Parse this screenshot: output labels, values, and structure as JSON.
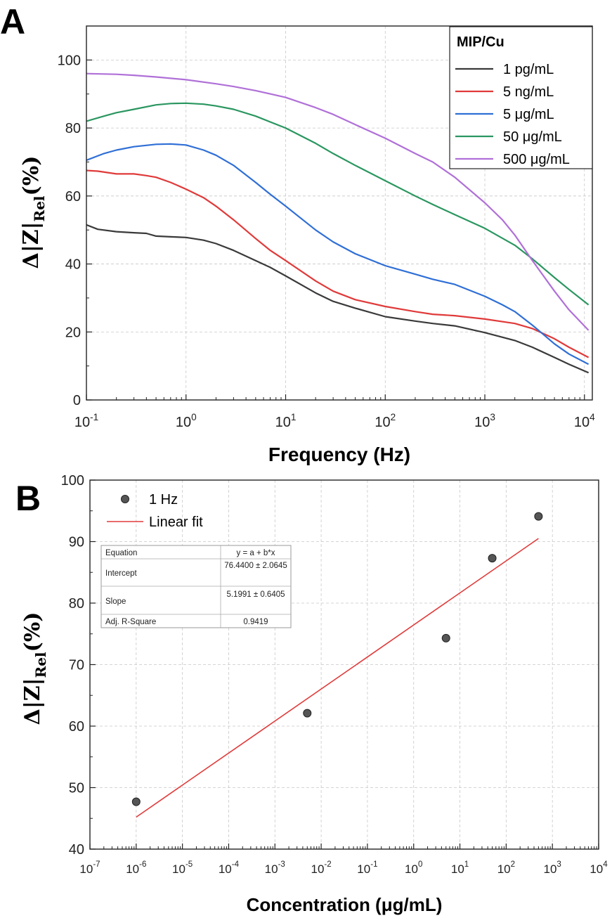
{
  "chart_data": [
    {
      "panel": "A",
      "type": "line",
      "xscale": "log",
      "xlabel": "Frequency (Hz)",
      "ylabel": {
        "prefix": "Δ|Z|",
        "sub": "Rel",
        "suffix": "(%)"
      },
      "xlim": [
        0.1,
        12000
      ],
      "ylim": [
        0,
        110
      ],
      "xticks": [
        {
          "value": 0.1,
          "base": "10",
          "exp": "-1"
        },
        {
          "value": 1,
          "base": "10",
          "exp": "0"
        },
        {
          "value": 10,
          "base": "10",
          "exp": "1"
        },
        {
          "value": 100,
          "base": "10",
          "exp": "2"
        },
        {
          "value": 1000,
          "base": "10",
          "exp": "3"
        },
        {
          "value": 10000,
          "base": "10",
          "exp": "4"
        }
      ],
      "yticks": [
        0,
        20,
        40,
        60,
        80,
        100
      ],
      "grid": true,
      "legend": {
        "title": "MIP/Cu",
        "position": "top-right"
      },
      "series": [
        {
          "name": "1 pg/mL",
          "color": "#3a3a3a",
          "x": [
            0.1,
            0.13,
            0.2,
            0.3,
            0.4,
            0.5,
            0.7,
            1,
            1.5,
            2,
            3,
            5,
            7,
            10,
            20,
            30,
            50,
            100,
            200,
            300,
            500,
            1000,
            2000,
            3000,
            5000,
            7000,
            11000
          ],
          "y": [
            51.5,
            50.2,
            49.5,
            49.2,
            49.0,
            48.2,
            48.0,
            47.8,
            47.0,
            46.0,
            44.0,
            41.0,
            39.0,
            36.5,
            31.5,
            29.0,
            27.0,
            24.5,
            23.2,
            22.5,
            21.8,
            19.8,
            17.5,
            15.5,
            12.5,
            10.5,
            8.0
          ]
        },
        {
          "name": "5 ng/mL",
          "color": "#e03a3a",
          "x": [
            0.1,
            0.13,
            0.2,
            0.3,
            0.4,
            0.5,
            0.7,
            1,
            1.5,
            2,
            3,
            5,
            7,
            10,
            20,
            30,
            50,
            100,
            200,
            300,
            500,
            1000,
            2000,
            3000,
            5000,
            7000,
            11000
          ],
          "y": [
            67.5,
            67.3,
            66.5,
            66.5,
            66.0,
            65.5,
            64.0,
            62.0,
            59.5,
            57.0,
            53.0,
            47.5,
            44.0,
            41.0,
            35.0,
            32.0,
            29.5,
            27.5,
            26.0,
            25.2,
            24.8,
            23.8,
            22.5,
            21.0,
            18.0,
            15.5,
            12.5
          ]
        },
        {
          "name": "5 μg/mL",
          "color": "#2f6fd6",
          "x": [
            0.1,
            0.15,
            0.2,
            0.3,
            0.5,
            0.7,
            1,
            1.5,
            2,
            3,
            5,
            7,
            10,
            20,
            30,
            50,
            100,
            200,
            300,
            500,
            1000,
            1500,
            2000,
            3000,
            5000,
            7000,
            11000
          ],
          "y": [
            70.5,
            72.5,
            73.5,
            74.5,
            75.2,
            75.3,
            75.0,
            73.5,
            72.0,
            69.0,
            64.0,
            60.5,
            57.0,
            50.0,
            46.5,
            43.0,
            39.5,
            37.0,
            35.5,
            34.0,
            30.5,
            28.0,
            26.0,
            22.0,
            16.5,
            13.5,
            10.5
          ]
        },
        {
          "name": "50 μg/mL",
          "color": "#2a9660",
          "x": [
            0.1,
            0.15,
            0.2,
            0.3,
            0.5,
            0.7,
            1,
            1.5,
            2,
            3,
            5,
            10,
            20,
            30,
            50,
            100,
            200,
            300,
            500,
            1000,
            2000,
            3000,
            5000,
            7000,
            11000
          ],
          "y": [
            82.0,
            83.5,
            84.5,
            85.5,
            86.8,
            87.2,
            87.3,
            87.0,
            86.5,
            85.5,
            83.5,
            80.0,
            75.5,
            72.5,
            69.0,
            64.5,
            60.0,
            57.5,
            54.5,
            50.5,
            45.5,
            41.5,
            36.0,
            32.5,
            28.0
          ]
        },
        {
          "name": "500 μg/mL",
          "color": "#b070d8",
          "x": [
            0.1,
            0.2,
            0.3,
            0.5,
            1,
            2,
            3,
            5,
            10,
            20,
            30,
            50,
            100,
            200,
            300,
            500,
            1000,
            1500,
            2000,
            3000,
            5000,
            7000,
            11000
          ],
          "y": [
            96.0,
            95.8,
            95.5,
            95.0,
            94.2,
            93.0,
            92.2,
            91.0,
            89.0,
            86.0,
            84.0,
            81.0,
            77.0,
            72.5,
            70.0,
            65.5,
            58.0,
            53.0,
            48.5,
            41.0,
            32.0,
            26.5,
            20.5
          ]
        }
      ]
    },
    {
      "panel": "B",
      "type": "scatter",
      "xscale": "log",
      "xlabel": "Concentration (μg/mL)",
      "ylabel": {
        "prefix": "Δ|Z|",
        "sub": "Rel",
        "suffix": "(%)"
      },
      "xlim": [
        1e-07,
        10000
      ],
      "ylim": [
        40,
        100
      ],
      "xticks": [
        {
          "value": 1e-07,
          "base": "10",
          "exp": "-7"
        },
        {
          "value": 1e-06,
          "base": "10",
          "exp": "-6"
        },
        {
          "value": 1e-05,
          "base": "10",
          "exp": "-5"
        },
        {
          "value": 0.0001,
          "base": "10",
          "exp": "-4"
        },
        {
          "value": 0.001,
          "base": "10",
          "exp": "-3"
        },
        {
          "value": 0.01,
          "base": "10",
          "exp": "-2"
        },
        {
          "value": 0.1,
          "base": "10",
          "exp": "-1"
        },
        {
          "value": 1,
          "base": "10",
          "exp": "0"
        },
        {
          "value": 10,
          "base": "10",
          "exp": "1"
        },
        {
          "value": 100,
          "base": "10",
          "exp": "2"
        },
        {
          "value": 1000,
          "base": "10",
          "exp": "3"
        },
        {
          "value": 10000,
          "base": "10",
          "exp": "4"
        }
      ],
      "yticks": [
        40,
        50,
        60,
        70,
        80,
        90,
        100
      ],
      "grid": true,
      "legend": {
        "position": "top-left"
      },
      "points": {
        "name": "1 Hz",
        "x": [
          1e-06,
          0.005,
          5,
          50,
          500
        ],
        "y": [
          47.7,
          62.1,
          74.3,
          87.3,
          94.1
        ]
      },
      "fit": {
        "name": "Linear fit",
        "color": "#e03a3a",
        "x": [
          1e-06,
          500
        ],
        "y": [
          45.2,
          90.5
        ]
      },
      "stats_table": [
        [
          "Equation",
          "y = a + b*x"
        ],
        [
          "Intercept",
          "76.4400 ± 2.0645"
        ],
        [
          "Slope",
          "5.1991 ± 0.6405"
        ],
        [
          "Adj. R-Square",
          "0.9419"
        ]
      ]
    }
  ]
}
